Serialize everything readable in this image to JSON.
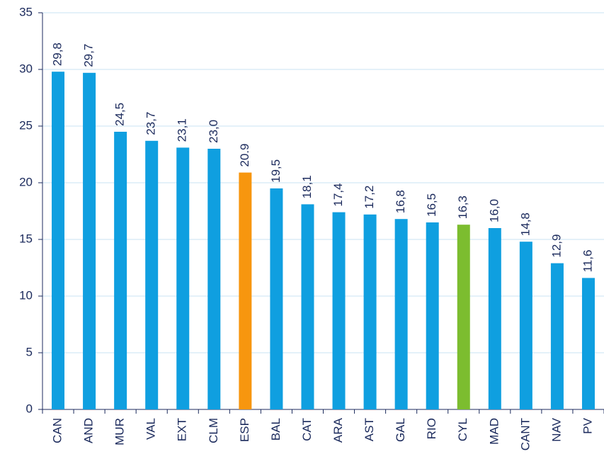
{
  "chart_data": {
    "type": "bar",
    "categories": [
      "CAN",
      "AND",
      "MUR",
      "VAL",
      "EXT",
      "CLM",
      "ESP",
      "BAL",
      "CAT",
      "ARA",
      "AST",
      "GAL",
      "RIO",
      "CYL",
      "MAD",
      "CANT",
      "NAV",
      "PV"
    ],
    "values": [
      29.8,
      29.7,
      24.5,
      23.7,
      23.1,
      23.0,
      20.9,
      19.5,
      18.1,
      17.4,
      17.2,
      16.8,
      16.5,
      16.3,
      16.0,
      14.8,
      12.9,
      11.6
    ],
    "value_labels": [
      "29,8",
      "29,7",
      "24,5",
      "23,7",
      "23,1",
      "23,0",
      "20.9",
      "19,5",
      "18,1",
      "17,4",
      "17,2",
      "16,8",
      "16,5",
      "16,3",
      "16,0",
      "14,8",
      "12,9",
      "11,6"
    ],
    "colors": [
      "#0f9fe0",
      "#0f9fe0",
      "#0f9fe0",
      "#0f9fe0",
      "#0f9fe0",
      "#0f9fe0",
      "#f7960f",
      "#0f9fe0",
      "#0f9fe0",
      "#0f9fe0",
      "#0f9fe0",
      "#0f9fe0",
      "#0f9fe0",
      "#7cbd2f",
      "#0f9fe0",
      "#0f9fe0",
      "#0f9fe0",
      "#0f9fe0"
    ],
    "ylim": [
      0,
      35
    ],
    "yticks": [
      0,
      5,
      10,
      15,
      20,
      25,
      30,
      35
    ],
    "grid": true
  }
}
